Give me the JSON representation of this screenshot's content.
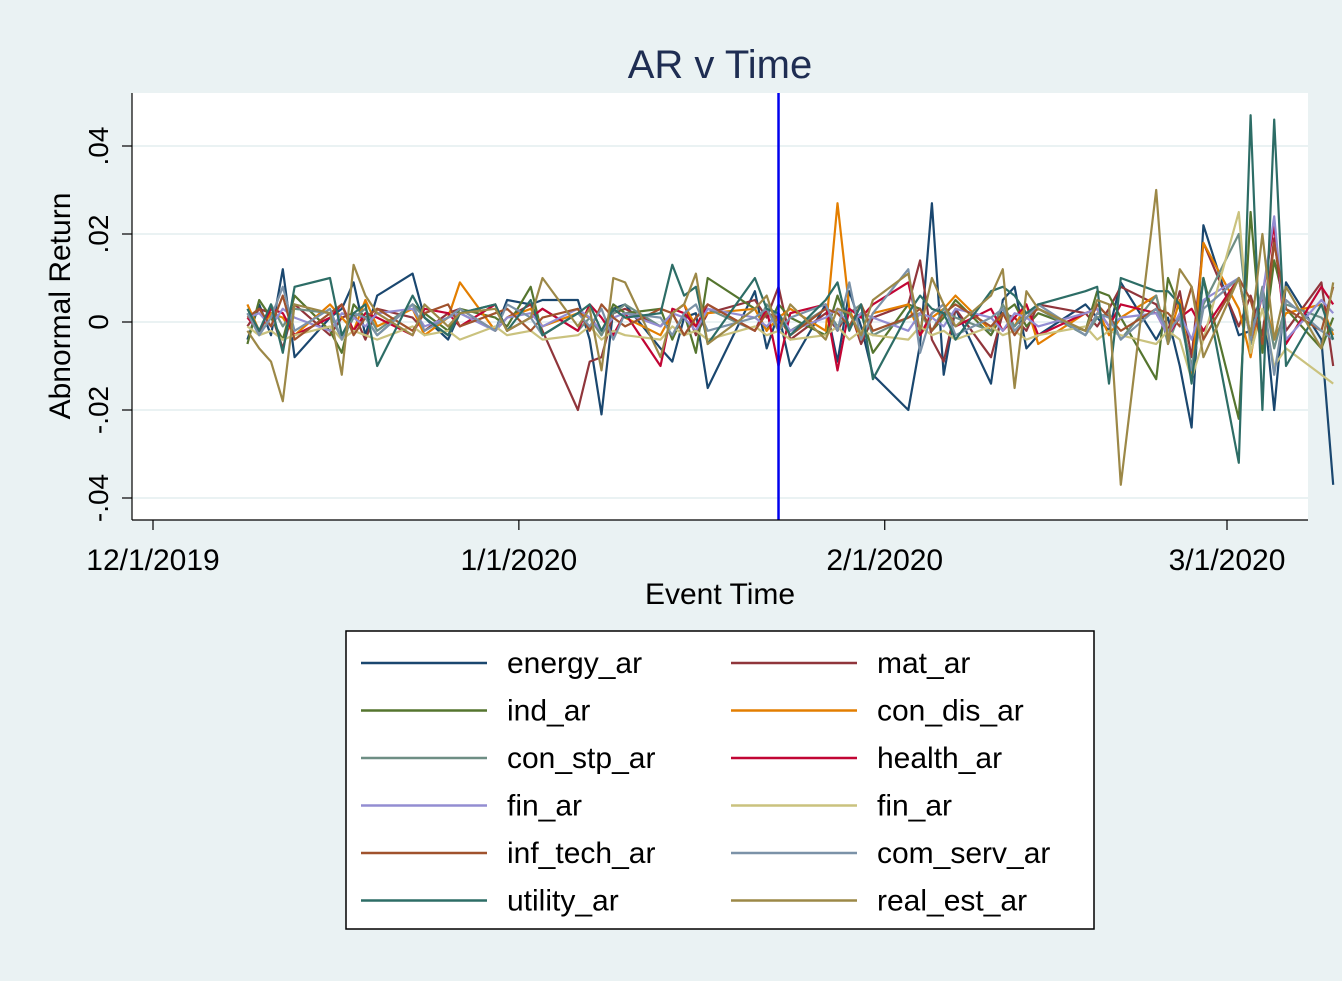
{
  "chart_data": {
    "type": "line",
    "title": "AR v Time",
    "xlabel": "Event Time",
    "ylabel": "Abnormal Return",
    "x_ticks": [
      "12/1/2019",
      "1/1/2020",
      "2/1/2020",
      "3/1/2020"
    ],
    "y_ticks": [
      "-.04",
      "-.02",
      "0",
      ".02",
      ".04"
    ],
    "y_tick_values": [
      -0.04,
      -0.02,
      0,
      0.02,
      0.04
    ],
    "ylim": [
      -0.045,
      0.052
    ],
    "xlim": [
      "2019-11-30",
      "2020-03-19"
    ],
    "event_date": "2020-01-23",
    "event_line_color": "#0000ee",
    "grid": true,
    "legend_position": "bottom",
    "dates": [
      "2019-12-09",
      "2019-12-10",
      "2019-12-11",
      "2019-12-12",
      "2019-12-13",
      "2019-12-16",
      "2019-12-17",
      "2019-12-18",
      "2019-12-19",
      "2019-12-20",
      "2019-12-23",
      "2019-12-24",
      "2019-12-26",
      "2019-12-27",
      "2019-12-30",
      "2019-12-31",
      "2020-01-02",
      "2020-01-03",
      "2020-01-06",
      "2020-01-07",
      "2020-01-08",
      "2020-01-09",
      "2020-01-10",
      "2020-01-13",
      "2020-01-14",
      "2020-01-15",
      "2020-01-16",
      "2020-01-17",
      "2020-01-21",
      "2020-01-22",
      "2020-01-23",
      "2020-01-24",
      "2020-01-27",
      "2020-01-28",
      "2020-01-29",
      "2020-01-30",
      "2020-01-31",
      "2020-02-03",
      "2020-02-04",
      "2020-02-05",
      "2020-02-06",
      "2020-02-07",
      "2020-02-10",
      "2020-02-11",
      "2020-02-12",
      "2020-02-13",
      "2020-02-14",
      "2020-02-18",
      "2020-02-19",
      "2020-02-20",
      "2020-02-21",
      "2020-02-24",
      "2020-02-25",
      "2020-02-26",
      "2020-02-27",
      "2020-02-28",
      "2020-03-02",
      "2020-03-03",
      "2020-03-04",
      "2020-03-05",
      "2020-03-06",
      "2020-03-09",
      "2020-03-10"
    ],
    "series": [
      {
        "name": "energy_ar",
        "color": "#1a476f",
        "values": [
          -0.004,
          0.004,
          -0.003,
          0.012,
          -0.008,
          0.001,
          0.003,
          0.009,
          -0.003,
          0.006,
          0.011,
          0.001,
          -0.004,
          0.002,
          -0.002,
          0.005,
          0.004,
          0.005,
          0.005,
          -0.004,
          -0.021,
          0.003,
          0.004,
          -0.006,
          -0.009,
          0.001,
          0.002,
          -0.015,
          0.007,
          -0.006,
          0.002,
          -0.01,
          0.004,
          -0.009,
          0.007,
          -0.001,
          -0.012,
          -0.02,
          -0.005,
          0.027,
          -0.012,
          0.003,
          -0.014,
          0.005,
          0.008,
          -0.006,
          -0.003,
          0.004,
          0.001,
          -0.002,
          0.009,
          -0.004,
          0.001,
          -0.01,
          -0.024,
          0.022,
          -0.003,
          -0.002,
          0.007,
          -0.02,
          0.009,
          -0.004,
          -0.037
        ]
      },
      {
        "name": "mat_ar",
        "color": "#90353b",
        "values": [
          -0.001,
          0.003,
          0.002,
          -0.006,
          0.004,
          -0.003,
          0.001,
          0.002,
          -0.004,
          0.003,
          0.001,
          -0.002,
          0.002,
          0.003,
          -0.002,
          0.001,
          0.004,
          -0.002,
          -0.02,
          -0.009,
          -0.008,
          0.002,
          0.003,
          -0.001,
          0.002,
          0.004,
          -0.003,
          0.002,
          0.005,
          0.001,
          0.008,
          -0.004,
          0.002,
          -0.002,
          0.003,
          -0.005,
          0.001,
          0.004,
          0.014,
          -0.004,
          -0.009,
          0.003,
          -0.008,
          0.002,
          0.001,
          -0.002,
          0.004,
          0.002,
          -0.001,
          0.003,
          0.008,
          0.004,
          -0.002,
          0.007,
          -0.008,
          0.018,
          -0.001,
          0.006,
          -0.003,
          0.019,
          -0.002,
          0.009,
          -0.01
        ]
      },
      {
        "name": "ind_ar",
        "color": "#55752f",
        "values": [
          -0.005,
          0.005,
          0.001,
          -0.004,
          0.006,
          -0.002,
          -0.007,
          0.004,
          0.001,
          -0.003,
          0.004,
          0.002,
          -0.002,
          0.003,
          0.001,
          -0.001,
          0.008,
          -0.003,
          0.002,
          0.001,
          -0.003,
          0.004,
          0.002,
          0.003,
          -0.004,
          0.002,
          -0.007,
          0.01,
          0.003,
          -0.002,
          0.004,
          0.001,
          -0.003,
          0.006,
          -0.001,
          0.002,
          -0.007,
          0.004,
          0.003,
          -0.002,
          0.001,
          0.005,
          -0.003,
          0.002,
          0.004,
          -0.001,
          0.002,
          -0.002,
          0.007,
          0.006,
          0.001,
          -0.013,
          0.01,
          0.003,
          -0.012,
          0.01,
          -0.022,
          0.025,
          -0.007,
          0.014,
          0.003,
          -0.006,
          0.001
        ]
      },
      {
        "name": "con_dis_ar",
        "color": "#e37e00",
        "values": [
          0.004,
          -0.002,
          0.002,
          0.001,
          -0.003,
          0.004,
          0.001,
          -0.002,
          0.005,
          -0.001,
          0.003,
          -0.003,
          0.001,
          0.009,
          -0.002,
          0.001,
          0.003,
          -0.001,
          0.002,
          0.001,
          -0.002,
          0.003,
          0.001,
          -0.003,
          0.002,
          0.004,
          -0.001,
          0.002,
          0.003,
          -0.002,
          0.001,
          0.003,
          -0.002,
          0.027,
          0.003,
          -0.004,
          0.002,
          0.004,
          -0.003,
          0.001,
          0.003,
          0.006,
          -0.002,
          0.002,
          -0.001,
          0.004,
          -0.005,
          0.002,
          0.003,
          -0.003,
          0.001,
          0.006,
          -0.004,
          0.005,
          -0.012,
          0.018,
          0.003,
          -0.008,
          0.007,
          -0.004,
          0.002,
          0.004,
          -0.003
        ]
      },
      {
        "name": "con_stp_ar",
        "color": "#6e8e84",
        "values": [
          0.002,
          -0.003,
          0.004,
          -0.001,
          0.003,
          0.002,
          -0.004,
          0.001,
          0.003,
          -0.002,
          0.004,
          0.001,
          -0.003,
          0.002,
          0.004,
          -0.002,
          0.001,
          0.003,
          -0.002,
          0.001,
          -0.003,
          0.002,
          0.004,
          -0.001,
          0.002,
          -0.003,
          0.001,
          0.003,
          -0.002,
          0.004,
          0.001,
          -0.002,
          0.003,
          -0.001,
          0.002,
          0.004,
          -0.003,
          0.001,
          0.002,
          -0.002,
          0.003,
          0.001,
          -0.002,
          0.004,
          -0.001,
          0.002,
          0.003,
          -0.003,
          0.001,
          0.002,
          -0.004,
          0.006,
          -0.005,
          0.002,
          -0.01,
          0.004,
          0.02,
          -0.005,
          0.008,
          -0.006,
          0.004,
          0.001,
          -0.002
        ]
      },
      {
        "name": "health_ar",
        "color": "#c10534",
        "values": [
          0.001,
          -0.002,
          0.003,
          0.002,
          -0.003,
          0.001,
          0.004,
          -0.002,
          0.002,
          0.001,
          -0.003,
          0.003,
          0.002,
          -0.001,
          0.004,
          -0.002,
          0.001,
          0.003,
          -0.002,
          0.004,
          0.001,
          -0.003,
          0.002,
          -0.01,
          0.003,
          0.002,
          -0.001,
          0.004,
          -0.002,
          0.003,
          -0.01,
          0.002,
          0.004,
          -0.011,
          0.003,
          0.001,
          0.004,
          0.009,
          -0.003,
          0.002,
          0.004,
          -0.001,
          0.003,
          -0.002,
          0.001,
          0.004,
          -0.003,
          0.002,
          0.003,
          -0.001,
          0.004,
          0.002,
          -0.003,
          0.001,
          0.003,
          -0.002,
          0.01,
          -0.004,
          0.006,
          0.022,
          -0.005,
          0.008,
          0.004
        ]
      },
      {
        "name": "fin_ar",
        "color": "#938dd2",
        "values": [
          0.001,
          0.002,
          -0.001,
          0.003,
          0.001,
          -0.002,
          0.002,
          0.001,
          -0.001,
          0.002,
          0.003,
          -0.001,
          0.001,
          0.002,
          -0.002,
          0.001,
          0.002,
          -0.001,
          0.003,
          0.001,
          -0.002,
          0.001,
          0.002,
          -0.001,
          0.002,
          0.001,
          -0.002,
          0.003,
          0.001,
          -0.001,
          0.002,
          -0.002,
          0.001,
          0.003,
          -0.001,
          0.002,
          0.001,
          -0.002,
          0.002,
          0.001,
          -0.001,
          0.003,
          0.001,
          -0.002,
          0.002,
          0.001,
          -0.001,
          0.002,
          0.003,
          -0.001,
          0.001,
          0.002,
          -0.003,
          0.002,
          -0.004,
          0.005,
          0.01,
          -0.003,
          0.006,
          0.024,
          -0.004,
          0.005,
          0.002
        ]
      },
      {
        "name": "fin_ar",
        "color": "#cac27e",
        "values": [
          -0.001,
          -0.003,
          -0.002,
          -0.004,
          -0.003,
          -0.001,
          -0.004,
          -0.002,
          -0.003,
          -0.004,
          -0.001,
          -0.003,
          -0.002,
          -0.004,
          -0.001,
          -0.003,
          -0.002,
          -0.004,
          -0.003,
          -0.001,
          -0.004,
          -0.002,
          -0.003,
          -0.004,
          -0.001,
          -0.003,
          -0.002,
          -0.004,
          -0.001,
          -0.003,
          -0.002,
          -0.004,
          -0.003,
          -0.001,
          -0.004,
          -0.002,
          -0.003,
          -0.004,
          -0.001,
          -0.003,
          -0.002,
          -0.004,
          -0.001,
          -0.003,
          -0.002,
          -0.004,
          -0.003,
          -0.001,
          -0.004,
          -0.002,
          -0.003,
          -0.005,
          -0.002,
          -0.004,
          -0.013,
          -0.004,
          0.025,
          -0.007,
          0.003,
          -0.01,
          -0.006,
          -0.012,
          -0.014
        ]
      },
      {
        "name": "inf_tech_ar",
        "color": "#a0522d",
        "values": [
          0.001,
          0.003,
          -0.001,
          0.006,
          -0.004,
          0.002,
          0.004,
          -0.003,
          0.001,
          0.003,
          -0.002,
          0.002,
          0.004,
          -0.001,
          0.002,
          0.003,
          -0.002,
          0.001,
          0.003,
          -0.002,
          0.004,
          0.001,
          -0.001,
          0.003,
          0.002,
          -0.003,
          0.001,
          0.004,
          -0.002,
          0.002,
          0.001,
          -0.003,
          0.003,
          0.002,
          -0.001,
          0.004,
          -0.002,
          0.001,
          0.003,
          -0.002,
          0.002,
          0.004,
          -0.001,
          0.002,
          -0.003,
          0.001,
          0.003,
          -0.002,
          0.004,
          0.001,
          -0.002,
          0.003,
          0.002,
          -0.001,
          0.008,
          -0.004,
          0.01,
          0.005,
          -0.005,
          0.018,
          0.003,
          -0.002,
          0.008
        ]
      },
      {
        "name": "com_serv_ar",
        "color": "#7b92a8",
        "values": [
          0.002,
          -0.003,
          0.001,
          0.008,
          -0.002,
          0.003,
          -0.004,
          0.002,
          0.001,
          -0.003,
          0.004,
          -0.002,
          0.001,
          0.003,
          -0.002,
          0.004,
          0.001,
          -0.003,
          0.002,
          -0.001,
          0.003,
          -0.004,
          0.002,
          0.001,
          -0.003,
          0.002,
          0.004,
          -0.002,
          0.001,
          0.003,
          -0.002,
          0.001,
          0.004,
          -0.002,
          0.009,
          -0.004,
          0.002,
          0.012,
          -0.007,
          0.002,
          0.004,
          -0.003,
          0.001,
          0.003,
          -0.002,
          0.001,
          0.004,
          -0.003,
          0.002,
          0.001,
          -0.004,
          0.003,
          -0.002,
          0.001,
          -0.011,
          0.003,
          0.01,
          -0.004,
          0.007,
          -0.012,
          0.005,
          -0.002,
          -0.004
        ]
      },
      {
        "name": "utility_ar",
        "color": "#2d6d66",
        "values": [
          0.003,
          -0.002,
          0.004,
          -0.007,
          0.008,
          0.01,
          -0.003,
          0.002,
          0.004,
          -0.01,
          0.006,
          0.001,
          -0.003,
          0.002,
          0.004,
          -0.002,
          0.005,
          -0.003,
          0.002,
          0.004,
          -0.002,
          0.003,
          0.001,
          0.002,
          0.013,
          0.006,
          0.008,
          -0.005,
          0.01,
          0.003,
          0.002,
          -0.003,
          0.005,
          0.009,
          -0.002,
          0.004,
          -0.013,
          0.002,
          0.006,
          0.003,
          0.002,
          -0.004,
          0.007,
          0.008,
          0.006,
          0.002,
          0.004,
          0.007,
          0.008,
          -0.014,
          0.01,
          0.007,
          0.007,
          0.004,
          -0.014,
          0.01,
          -0.032,
          0.047,
          -0.02,
          0.046,
          -0.01,
          0.004,
          -0.004
        ]
      },
      {
        "name": "real_est_ar",
        "color": "#9c8847",
        "values": [
          -0.002,
          -0.006,
          -0.009,
          -0.018,
          0.004,
          0.002,
          -0.012,
          0.013,
          0.006,
          0.002,
          -0.003,
          0.004,
          -0.001,
          0.002,
          0.003,
          -0.002,
          0.001,
          0.01,
          -0.001,
          0.003,
          -0.011,
          0.01,
          0.009,
          -0.008,
          0.002,
          0.004,
          0.011,
          -0.005,
          0.003,
          0.006,
          -0.002,
          0.004,
          -0.004,
          0.003,
          0.002,
          -0.003,
          0.005,
          0.011,
          -0.002,
          0.01,
          0.004,
          -0.001,
          0.006,
          0.012,
          -0.015,
          0.007,
          0.003,
          -0.002,
          0.005,
          0.004,
          -0.037,
          0.03,
          -0.005,
          0.012,
          0.008,
          -0.008,
          0.01,
          -0.003,
          0.02,
          -0.004,
          0.008,
          -0.006,
          0.009
        ]
      }
    ]
  }
}
